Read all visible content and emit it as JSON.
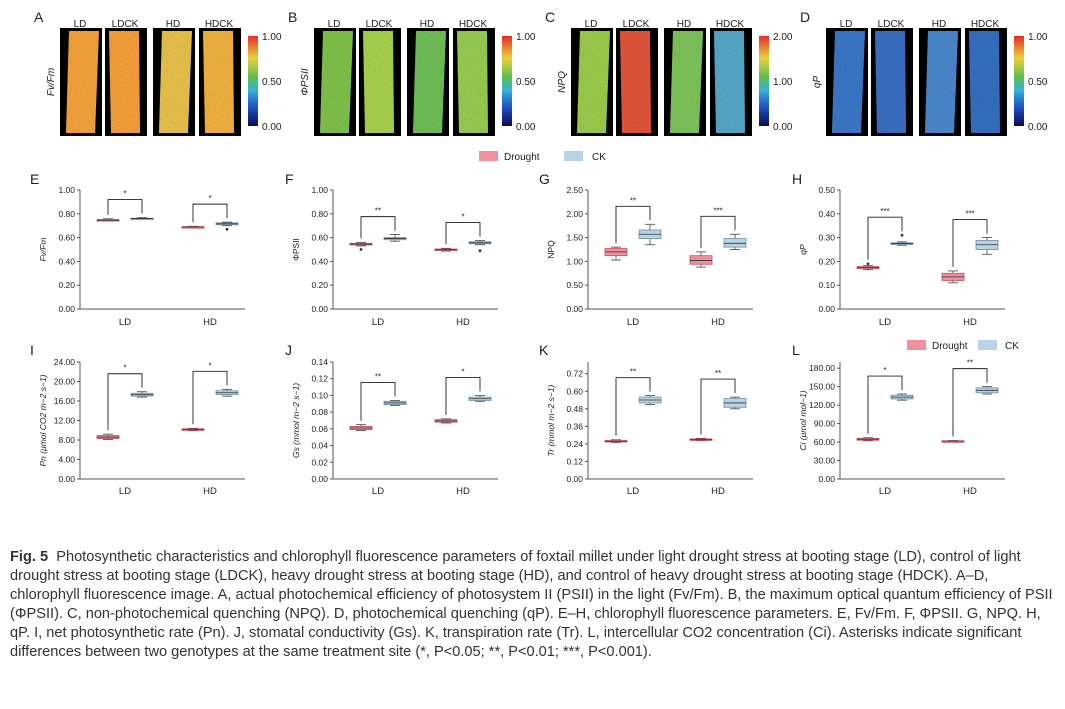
{
  "colors": {
    "drought": "#f0909c",
    "drought_dark": "#c05060",
    "ck": "#b6d4e6",
    "ck_dark": "#6f8fa6",
    "axis": "#555555",
    "text": "#222222"
  },
  "images": {
    "columns": [
      "LD",
      "LDCK",
      "HD",
      "HDCK"
    ],
    "panels": [
      {
        "letter": "A",
        "ylabel": "Fv/Fm",
        "scale_top": "1.00",
        "scale_mid": "0.50",
        "scale_bottom": "0.00",
        "palette": [
          "#f5a33a",
          "#f6a03a",
          "#e8c24a",
          "#f2b240"
        ]
      },
      {
        "letter": "B",
        "ylabel": "ΦPSII",
        "scale_top": "1.00",
        "scale_mid": "0.50",
        "scale_bottom": "0.00",
        "palette": [
          "#7fc24a",
          "#a8d24e",
          "#6fbf56",
          "#98cc52"
        ]
      },
      {
        "letter": "C",
        "ylabel": "NPQ",
        "scale_top": "2.00",
        "scale_mid": "1.00",
        "scale_bottom": "0.00",
        "palette": [
          "#9ccc4a",
          "#e2553a",
          "#7ec45a",
          "#56a8c8"
        ]
      },
      {
        "letter": "D",
        "ylabel": "qP",
        "scale_top": "1.00",
        "scale_mid": "0.50",
        "scale_bottom": "0.00",
        "palette": [
          "#3a78c8",
          "#3a70c2",
          "#4a88cc",
          "#3470c0"
        ]
      }
    ]
  },
  "legend": {
    "drought": "Drought",
    "ck": "CK"
  },
  "chart_data": [
    {
      "letter": "E",
      "type": "box",
      "ylabel": "Fv/Fm",
      "ylim": [
        0,
        1
      ],
      "yticks": [
        "0.00",
        "0.20",
        "0.40",
        "0.60",
        "0.80",
        "1.00"
      ],
      "categories": [
        "LD",
        "HD"
      ],
      "series": [
        {
          "name": "Drought",
          "boxes": [
            {
              "min": 0.74,
              "q1": 0.742,
              "median": 0.746,
              "q3": 0.752,
              "max": 0.758,
              "out": []
            },
            {
              "min": 0.684,
              "q1": 0.686,
              "median": 0.689,
              "q3": 0.692,
              "max": 0.695,
              "out": []
            }
          ]
        },
        {
          "name": "CK",
          "boxes": [
            {
              "min": 0.756,
              "q1": 0.758,
              "median": 0.76,
              "q3": 0.763,
              "max": 0.768,
              "out": []
            },
            {
              "min": 0.7,
              "q1": 0.708,
              "median": 0.716,
              "q3": 0.724,
              "max": 0.73,
              "out": [
                0.67
              ]
            }
          ]
        }
      ],
      "sig": [
        "*",
        "*"
      ]
    },
    {
      "letter": "F",
      "type": "box",
      "ylabel": "ΦPSII",
      "ylim": [
        0,
        1
      ],
      "yticks": [
        "0.00",
        "0.20",
        "0.40",
        "0.60",
        "0.80",
        "1.00"
      ],
      "categories": [
        "LD",
        "HD"
      ],
      "series": [
        {
          "name": "Drought",
          "boxes": [
            {
              "min": 0.53,
              "q1": 0.538,
              "median": 0.545,
              "q3": 0.552,
              "max": 0.56,
              "out": [
                0.5
              ]
            },
            {
              "min": 0.487,
              "q1": 0.492,
              "median": 0.498,
              "q3": 0.504,
              "max": 0.51,
              "out": []
            }
          ]
        },
        {
          "name": "CK",
          "boxes": [
            {
              "min": 0.57,
              "q1": 0.582,
              "median": 0.592,
              "q3": 0.6,
              "max": 0.625,
              "out": []
            },
            {
              "min": 0.54,
              "q1": 0.548,
              "median": 0.556,
              "q3": 0.565,
              "max": 0.575,
              "out": [
                0.49
              ]
            }
          ]
        }
      ],
      "sig": [
        "**",
        "*"
      ]
    },
    {
      "letter": "G",
      "type": "box",
      "ylabel": "NPQ",
      "ylim": [
        0,
        2.5
      ],
      "yticks": [
        "0.00",
        "0.50",
        "1.00",
        "1.50",
        "2.00",
        "2.50"
      ],
      "categories": [
        "LD",
        "HD"
      ],
      "series": [
        {
          "name": "Drought",
          "boxes": [
            {
              "min": 1.03,
              "q1": 1.12,
              "median": 1.2,
              "q3": 1.27,
              "max": 1.3,
              "out": []
            },
            {
              "min": 0.88,
              "q1": 0.94,
              "median": 1.02,
              "q3": 1.12,
              "max": 1.2,
              "out": []
            }
          ]
        },
        {
          "name": "CK",
          "boxes": [
            {
              "min": 1.35,
              "q1": 1.48,
              "median": 1.57,
              "q3": 1.66,
              "max": 1.78,
              "out": []
            },
            {
              "min": 1.25,
              "q1": 1.3,
              "median": 1.38,
              "q3": 1.48,
              "max": 1.57,
              "out": []
            }
          ]
        }
      ],
      "sig": [
        "**",
        "***"
      ]
    },
    {
      "letter": "H",
      "type": "box",
      "ylabel": "qP",
      "ylim": [
        0,
        0.5
      ],
      "yticks": [
        "0.00",
        "0.10",
        "0.20",
        "0.30",
        "0.40",
        "0.50"
      ],
      "categories": [
        "LD",
        "HD"
      ],
      "series": [
        {
          "name": "Drought",
          "boxes": [
            {
              "min": 0.165,
              "q1": 0.17,
              "median": 0.174,
              "q3": 0.178,
              "max": 0.182,
              "out": [
                0.19
              ]
            },
            {
              "min": 0.11,
              "q1": 0.12,
              "median": 0.135,
              "q3": 0.15,
              "max": 0.16,
              "out": []
            }
          ]
        },
        {
          "name": "CK",
          "boxes": [
            {
              "min": 0.268,
              "q1": 0.271,
              "median": 0.275,
              "q3": 0.278,
              "max": 0.282,
              "out": [
                0.31
              ]
            },
            {
              "min": 0.23,
              "q1": 0.25,
              "median": 0.27,
              "q3": 0.288,
              "max": 0.3,
              "out": []
            }
          ]
        }
      ],
      "sig": [
        "***",
        "***"
      ]
    },
    {
      "letter": "I",
      "type": "box",
      "ylabel": "Pn (μmol CO2 m−2 s−1)",
      "ylim": [
        0,
        24
      ],
      "yticks": [
        "0.00",
        "4.00",
        "8.00",
        "12.00",
        "16.00",
        "20.00",
        "24.00"
      ],
      "categories": [
        "LD",
        "HD"
      ],
      "series": [
        {
          "name": "Drought",
          "boxes": [
            {
              "min": 8.1,
              "q1": 8.3,
              "median": 8.6,
              "q3": 8.9,
              "max": 9.2,
              "out": []
            },
            {
              "min": 9.9,
              "q1": 10.0,
              "median": 10.15,
              "q3": 10.3,
              "max": 10.4,
              "out": []
            }
          ]
        },
        {
          "name": "CK",
          "boxes": [
            {
              "min": 16.8,
              "q1": 17.0,
              "median": 17.3,
              "q3": 17.6,
              "max": 17.9,
              "out": []
            },
            {
              "min": 17.0,
              "q1": 17.3,
              "median": 17.7,
              "q3": 18.1,
              "max": 18.4,
              "out": []
            }
          ]
        }
      ],
      "sig": [
        "*",
        "*"
      ]
    },
    {
      "letter": "J",
      "type": "box",
      "ylabel": "Gs (mmol m−2 s−1)",
      "ylim": [
        0,
        0.14
      ],
      "yticks": [
        "0.00",
        "0.02",
        "0.04",
        "0.06",
        "0.08",
        "0.10",
        "0.12",
        "0.14"
      ],
      "categories": [
        "LD",
        "HD"
      ],
      "series": [
        {
          "name": "Drought",
          "boxes": [
            {
              "min": 0.058,
              "q1": 0.059,
              "median": 0.061,
              "q3": 0.063,
              "max": 0.065,
              "out": []
            },
            {
              "min": 0.067,
              "q1": 0.068,
              "median": 0.0695,
              "q3": 0.071,
              "max": 0.072,
              "out": []
            }
          ]
        },
        {
          "name": "CK",
          "boxes": [
            {
              "min": 0.088,
              "q1": 0.089,
              "median": 0.091,
              "q3": 0.093,
              "max": 0.094,
              "out": []
            },
            {
              "min": 0.093,
              "q1": 0.094,
              "median": 0.096,
              "q3": 0.098,
              "max": 0.1,
              "out": []
            }
          ]
        }
      ],
      "sig": [
        "**",
        "*"
      ]
    },
    {
      "letter": "K",
      "type": "box",
      "ylabel": "Tr (mmol m−2 s−1)",
      "ylim": [
        0,
        0.8
      ],
      "yticks": [
        "0.00",
        "0.12",
        "0.24",
        "0.36",
        "0.48",
        "0.60",
        "0.72"
      ],
      "categories": [
        "LD",
        "HD"
      ],
      "series": [
        {
          "name": "Drought",
          "boxes": [
            {
              "min": 0.25,
              "q1": 0.253,
              "median": 0.258,
              "q3": 0.263,
              "max": 0.268,
              "out": []
            },
            {
              "min": 0.262,
              "q1": 0.266,
              "median": 0.27,
              "q3": 0.274,
              "max": 0.278,
              "out": []
            }
          ]
        },
        {
          "name": "CK",
          "boxes": [
            {
              "min": 0.51,
              "q1": 0.52,
              "median": 0.54,
              "q3": 0.56,
              "max": 0.57,
              "out": []
            },
            {
              "min": 0.48,
              "q1": 0.49,
              "median": 0.52,
              "q3": 0.55,
              "max": 0.56,
              "out": []
            }
          ]
        }
      ],
      "sig": [
        "**",
        "**"
      ]
    },
    {
      "letter": "L",
      "type": "box",
      "ylabel": "Ci (μmol mol−1)",
      "ylim": [
        0,
        190
      ],
      "yticks": [
        "0.00",
        "30.00",
        "60.00",
        "90.00",
        "120.00",
        "150.00",
        "180.00"
      ],
      "categories": [
        "LD",
        "HD"
      ],
      "series": [
        {
          "name": "Drought",
          "boxes": [
            {
              "min": 62,
              "q1": 63,
              "median": 64.5,
              "q3": 66,
              "max": 67,
              "out": []
            },
            {
              "min": 60.5,
              "q1": 61,
              "median": 61.5,
              "q3": 62,
              "max": 62.5,
              "out": []
            }
          ]
        },
        {
          "name": "CK",
          "boxes": [
            {
              "min": 128,
              "q1": 130,
              "median": 133,
              "q3": 136,
              "max": 138,
              "out": []
            },
            {
              "min": 138,
              "q1": 140,
              "median": 144,
              "q3": 148,
              "max": 150,
              "out": []
            }
          ]
        }
      ],
      "sig": [
        "*",
        "**"
      ]
    }
  ],
  "caption": {
    "fig": "Fig. 5",
    "text": "Photosynthetic characteristics and chlorophyll fluorescence parameters of foxtail millet under light drought stress at booting stage (LD), control of light drought stress at booting stage (LDCK), heavy drought stress at booting stage (HD), and control of heavy drought stress at booting stage (HDCK).  A–D, chlorophyll fluorescence image.  A, actual photochemical efficiency of photosystem II (PSII) in the light (Fv/Fm).  B, the maximum optical quantum efficiency of PSII (ΦPSII).  C, non-photochemical quenching (NPQ).  D, photochemical quenching (qP).  E–H, chlorophyll fluorescence parameters.  E, Fv/Fm.  F, ΦPSII.  G, NPQ.  H, qP.  I, net photosynthetic rate (Pn).  J, stomatal conductivity (Gs).  K, transpiration rate (Tr).  L, intercellular CO2 concentration (Ci).  Asterisks indicate significant differences between two genotypes at the same treatment site (*, P<0.05; **, P<0.01; ***, P<0.001)."
  }
}
